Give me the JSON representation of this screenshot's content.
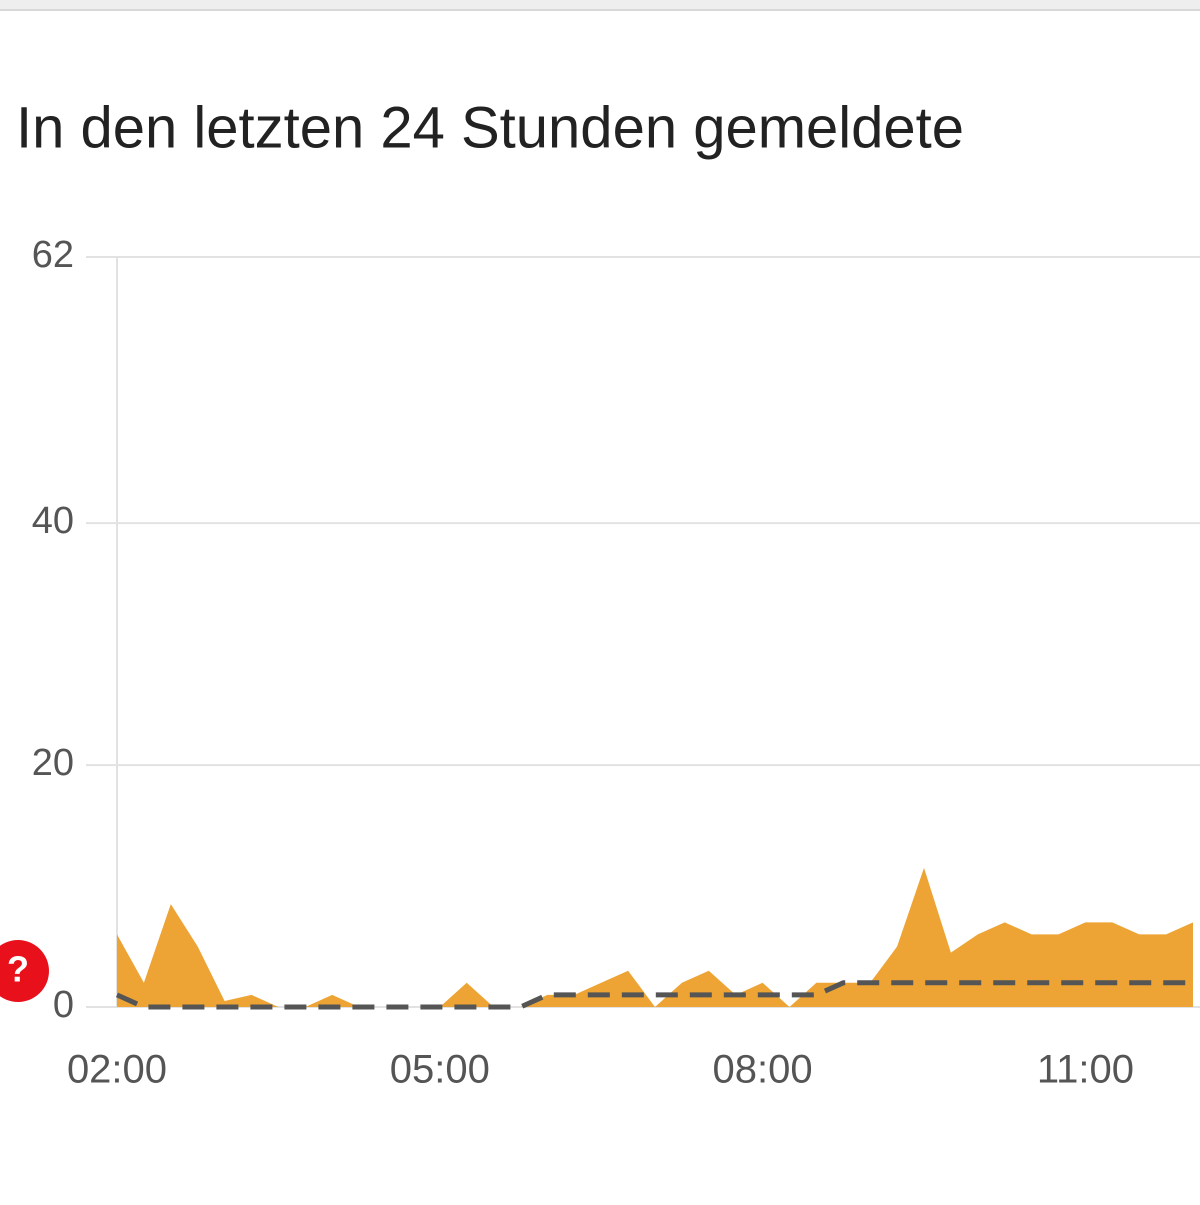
{
  "chart_data": {
    "type": "area",
    "title": "In den letzten 24 Stunden gemeldete",
    "categories": [
      "02:00",
      null,
      null,
      null,
      null,
      null,
      null,
      null,
      null,
      null,
      null,
      null,
      "05:00",
      null,
      null,
      null,
      null,
      null,
      null,
      null,
      null,
      null,
      null,
      null,
      "08:00",
      null,
      null,
      null,
      null,
      null,
      null,
      null,
      null,
      null,
      null,
      null,
      "11:00",
      null,
      null,
      null,
      null
    ],
    "series": [
      {
        "type": "area",
        "color": "#eda434",
        "values": [
          6,
          2,
          8.5,
          5,
          0.5,
          1,
          0,
          0,
          1,
          0,
          0,
          0,
          0,
          2,
          0,
          0,
          1,
          1,
          2,
          3,
          0,
          2,
          3,
          1,
          2,
          0,
          2,
          2,
          2,
          5,
          11.5,
          4.5,
          6,
          7,
          6,
          6,
          7,
          7,
          6,
          6,
          7
        ]
      },
      {
        "type": "line",
        "color": "#555555",
        "dashed": true,
        "values": [
          1,
          0,
          0,
          0,
          0,
          0,
          0,
          0,
          0,
          0,
          0,
          0,
          0,
          0,
          0,
          0,
          1,
          1,
          1,
          1,
          1,
          1,
          1,
          1,
          1,
          1,
          1,
          2,
          2,
          2,
          2,
          2,
          2,
          2,
          2,
          2,
          2,
          2,
          2,
          2,
          2
        ]
      }
    ],
    "ylim": [
      0,
      62
    ],
    "yticks": [
      0,
      20,
      40,
      62
    ],
    "grid": true
  },
  "marker": {
    "label": "?"
  }
}
